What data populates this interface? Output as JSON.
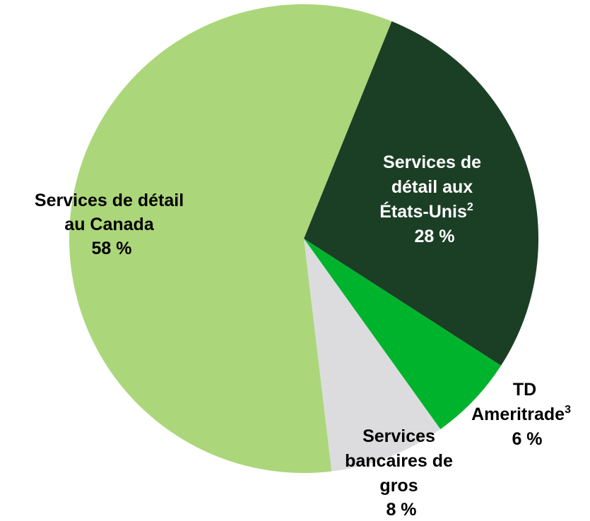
{
  "chart_data": {
    "type": "pie",
    "slices": [
      {
        "key": "canada",
        "lines": [
          "Services de détail",
          "au Canada"
        ],
        "value_label": "58 %",
        "value": 58,
        "color": "#acd67a"
      },
      {
        "key": "us",
        "lines": [
          "Services de",
          "détail aux",
          "États-Unis"
        ],
        "sup": "2",
        "value_label": "28 %",
        "value": 28,
        "color": "#1b3f25"
      },
      {
        "key": "ameritrade",
        "lines": [
          "TD",
          "Ameritrade"
        ],
        "sup": "3",
        "value_label": "6 %",
        "value": 6,
        "color": "#00b32c"
      },
      {
        "key": "wholesale",
        "lines": [
          "Services",
          "bancaires de",
          "gros"
        ],
        "value_label": "8 %",
        "value": 8,
        "color": "#dcdcdf"
      }
    ]
  }
}
